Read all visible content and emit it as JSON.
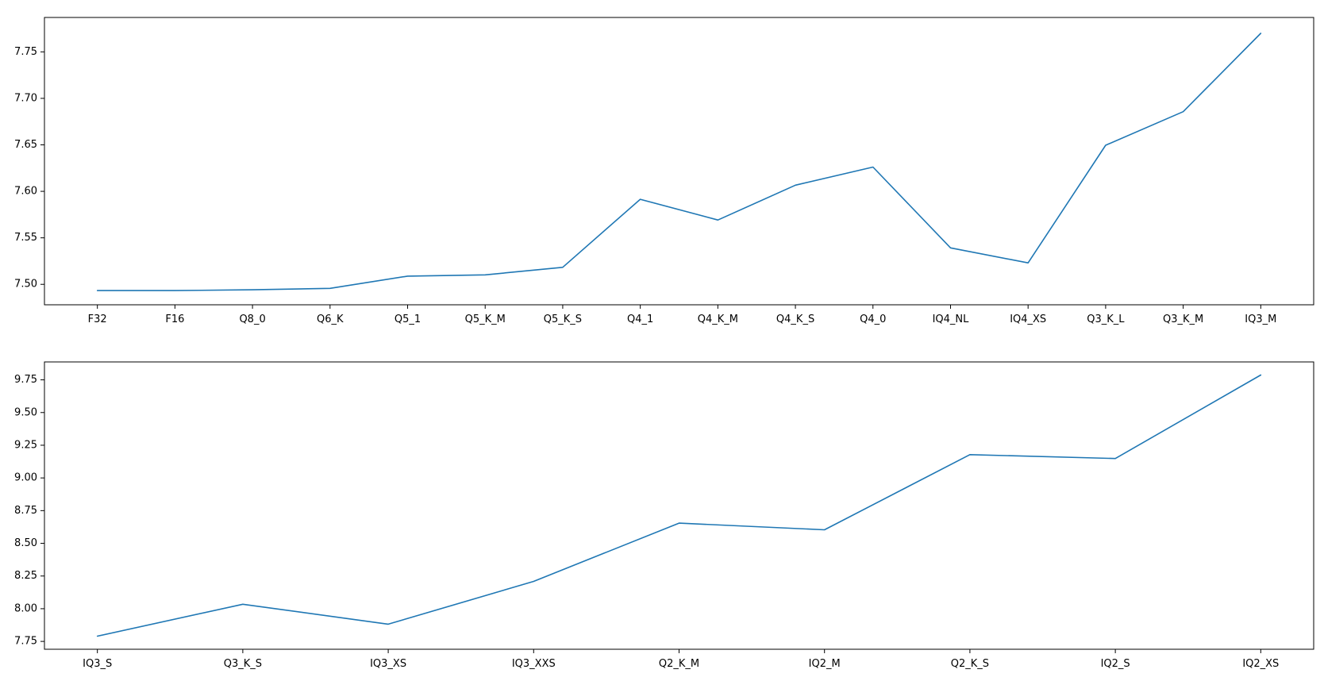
{
  "chart_data": [
    {
      "type": "line",
      "title": "",
      "xlabel": "",
      "ylabel": "",
      "grid": false,
      "legend": "none",
      "line_color": "#1f77b4",
      "categories": [
        "F32",
        "F16",
        "Q8_0",
        "Q6_K",
        "Q5_1",
        "Q5_K_M",
        "Q5_K_S",
        "Q4_1",
        "Q4_K_M",
        "Q4_K_S",
        "Q4_0",
        "IQ4_NL",
        "IQ4_XS",
        "Q3_K_L",
        "Q3_K_M",
        "IQ3_M"
      ],
      "values": [
        7.4933,
        7.4933,
        7.4941,
        7.4957,
        7.5088,
        7.5102,
        7.5183,
        7.5914,
        7.5692,
        7.6066,
        7.6261,
        7.5392,
        7.5231,
        7.6496,
        7.6857,
        7.7699
      ],
      "ylim": [
        7.478,
        7.787
      ],
      "yticks": [
        "7.50",
        "7.55",
        "7.60",
        "7.65",
        "7.70",
        "7.75"
      ],
      "ytick_values": [
        7.5,
        7.55,
        7.6,
        7.65,
        7.7,
        7.75
      ]
    },
    {
      "type": "line",
      "title": "",
      "xlabel": "",
      "ylabel": "",
      "grid": false,
      "legend": "none",
      "line_color": "#1f77b4",
      "categories": [
        "IQ3_S",
        "Q3_K_S",
        "IQ3_XS",
        "IQ3_XXS",
        "Q2_K_M",
        "IQ2_M",
        "Q2_K_S",
        "IQ2_S",
        "IQ2_XS"
      ],
      "values": [
        7.7899,
        8.0341,
        7.8817,
        8.2089,
        8.6541,
        8.6034,
        9.1781,
        9.1484,
        9.7866
      ],
      "ylim": [
        7.69,
        9.887
      ],
      "yticks": [
        "7.75",
        "8.00",
        "8.25",
        "8.50",
        "8.75",
        "9.00",
        "9.25",
        "9.50",
        "9.75"
      ],
      "ytick_values": [
        7.75,
        8.0,
        8.25,
        8.5,
        8.75,
        9.0,
        9.25,
        9.5,
        9.75
      ]
    }
  ]
}
